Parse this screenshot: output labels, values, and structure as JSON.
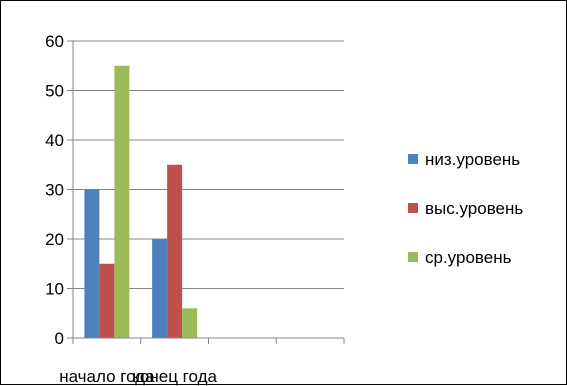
{
  "chart_data": {
    "type": "bar",
    "title": "",
    "xlabel": "",
    "ylabel": "",
    "categories": [
      "начало года",
      "конец года",
      "",
      ""
    ],
    "series": [
      {
        "name": "низ.уровень",
        "color": "#4F81BD",
        "values": [
          30,
          20,
          null,
          null
        ]
      },
      {
        "name": "выс.уровень",
        "color": "#C0504D",
        "values": [
          15,
          35,
          null,
          null
        ]
      },
      {
        "name": "ср.уровень",
        "color": "#9BBB59",
        "values": [
          55,
          6,
          null,
          null
        ]
      }
    ],
    "ylim": [
      0,
      60
    ],
    "yticks": [
      0,
      10,
      20,
      30,
      40,
      50,
      60
    ],
    "grid": true,
    "legend_position": "right"
  }
}
